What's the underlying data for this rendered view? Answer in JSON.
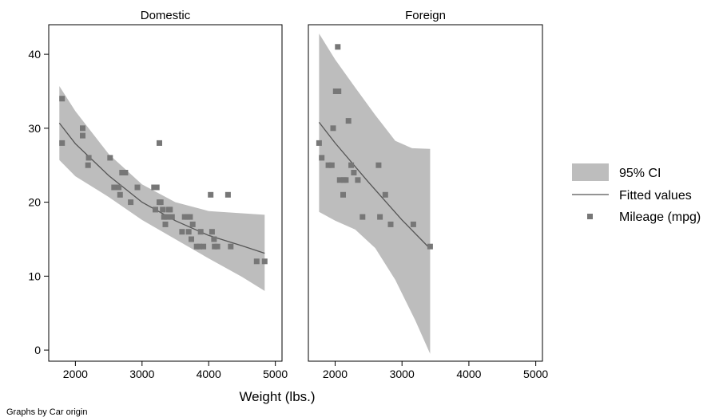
{
  "chart_data": {
    "type": "scatter",
    "note": "Graphs by Car origin",
    "xlabel": "Weight (lbs.)",
    "ylabel": "",
    "xlim": [
      1600,
      5100
    ],
    "ylim": [
      -1.5,
      44
    ],
    "x_ticks": [
      "2000",
      "3000",
      "4000",
      "5000"
    ],
    "y_ticks": [
      "0",
      "10",
      "20",
      "30",
      "40"
    ],
    "colors": {
      "ci_band": "#bdbdbd",
      "fit_line": "#555555",
      "points": "#777777"
    },
    "legend": {
      "placement": "right",
      "entries": [
        "95% CI",
        "Fitted values",
        "Mileage (mpg)"
      ]
    },
    "panels": [
      {
        "title": "Domestic",
        "points": [
          [
            1800,
            34
          ],
          [
            1800,
            28
          ],
          [
            2110,
            30
          ],
          [
            2110,
            29
          ],
          [
            2200,
            26
          ],
          [
            2190,
            25
          ],
          [
            2520,
            26
          ],
          [
            2580,
            22
          ],
          [
            2650,
            22
          ],
          [
            2670,
            21
          ],
          [
            2700,
            24
          ],
          [
            2750,
            24
          ],
          [
            2830,
            20
          ],
          [
            2930,
            22
          ],
          [
            3180,
            22
          ],
          [
            3220,
            22
          ],
          [
            3200,
            19
          ],
          [
            3260,
            28
          ],
          [
            3260,
            20
          ],
          [
            3280,
            20
          ],
          [
            3310,
            19
          ],
          [
            3330,
            18
          ],
          [
            3350,
            17
          ],
          [
            3370,
            18
          ],
          [
            3400,
            19
          ],
          [
            3420,
            19
          ],
          [
            3450,
            18
          ],
          [
            3600,
            16
          ],
          [
            3640,
            18
          ],
          [
            3680,
            18
          ],
          [
            3700,
            16
          ],
          [
            3720,
            18
          ],
          [
            3740,
            15
          ],
          [
            3760,
            17
          ],
          [
            3820,
            14
          ],
          [
            3860,
            14
          ],
          [
            3880,
            16
          ],
          [
            3920,
            14
          ],
          [
            4030,
            21
          ],
          [
            4050,
            16
          ],
          [
            4080,
            15
          ],
          [
            4090,
            14
          ],
          [
            4130,
            14
          ],
          [
            4290,
            21
          ],
          [
            4330,
            14
          ],
          [
            4720,
            12
          ],
          [
            4840,
            12
          ]
        ],
        "fit": [
          [
            1760,
            30.7
          ],
          [
            2000,
            27.9
          ],
          [
            2500,
            23.6
          ],
          [
            3000,
            20.0
          ],
          [
            3500,
            17.5
          ],
          [
            4000,
            15.5
          ],
          [
            4500,
            14.1
          ],
          [
            4840,
            13.1
          ]
        ],
        "ci_upper": [
          [
            1760,
            35.7
          ],
          [
            2000,
            32.3
          ],
          [
            2500,
            26.5
          ],
          [
            3000,
            22.4
          ],
          [
            3500,
            20.0
          ],
          [
            4000,
            18.8
          ],
          [
            4500,
            18.5
          ],
          [
            4840,
            18.3
          ]
        ],
        "ci_lower": [
          [
            1760,
            25.7
          ],
          [
            2000,
            23.5
          ],
          [
            2500,
            20.7
          ],
          [
            3000,
            17.6
          ],
          [
            3500,
            15.0
          ],
          [
            4000,
            12.4
          ],
          [
            4500,
            9.9
          ],
          [
            4840,
            8.0
          ]
        ]
      },
      {
        "title": "Foreign",
        "points": [
          [
            1760,
            28
          ],
          [
            1800,
            26
          ],
          [
            1900,
            25
          ],
          [
            1950,
            25
          ],
          [
            1970,
            30
          ],
          [
            2010,
            35
          ],
          [
            2040,
            41
          ],
          [
            2050,
            35
          ],
          [
            2070,
            23
          ],
          [
            2120,
            21
          ],
          [
            2130,
            23
          ],
          [
            2160,
            23
          ],
          [
            2200,
            31
          ],
          [
            2240,
            25
          ],
          [
            2280,
            24
          ],
          [
            2340,
            23
          ],
          [
            2410,
            18
          ],
          [
            2650,
            25
          ],
          [
            2670,
            18
          ],
          [
            2750,
            21
          ],
          [
            2830,
            17
          ],
          [
            3170,
            17
          ],
          [
            3420,
            14
          ]
        ],
        "fit": [
          [
            1760,
            30.8
          ],
          [
            2000,
            28.0
          ],
          [
            2500,
            22.7
          ],
          [
            3000,
            17.6
          ],
          [
            3420,
            13.7
          ]
        ],
        "ci_upper": [
          [
            1760,
            42.8
          ],
          [
            2000,
            39.3
          ],
          [
            2300,
            35.5
          ],
          [
            2600,
            31.8
          ],
          [
            2900,
            28.3
          ],
          [
            3150,
            27.3
          ],
          [
            3420,
            27.2
          ]
        ],
        "ci_lower": [
          [
            1760,
            18.7
          ],
          [
            2000,
            17.5
          ],
          [
            2300,
            16.3
          ],
          [
            2600,
            13.8
          ],
          [
            2900,
            9.5
          ],
          [
            3200,
            4.0
          ],
          [
            3420,
            -0.5
          ]
        ]
      }
    ]
  }
}
